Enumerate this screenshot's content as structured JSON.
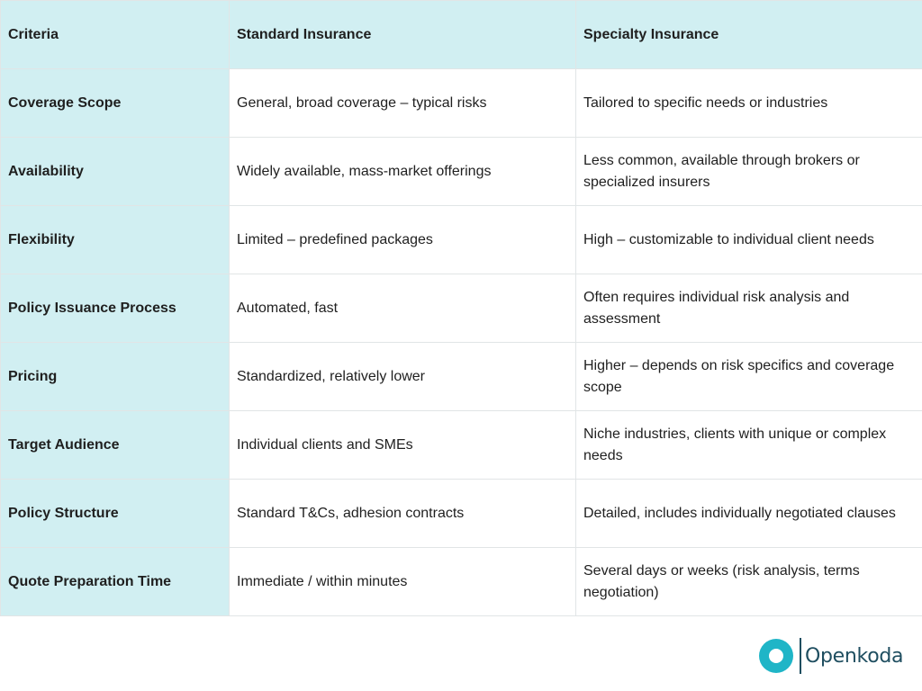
{
  "table": {
    "headers": [
      "Criteria",
      "Standard Insurance",
      "Specialty Insurance"
    ],
    "rows": [
      {
        "criteria": "Coverage Scope",
        "standard": "General, broad coverage – typical risks",
        "specialty": "Tailored to specific needs or industries"
      },
      {
        "criteria": "Availability",
        "standard": "Widely available, mass-market offerings",
        "specialty": "Less common, available through brokers or specialized insurers"
      },
      {
        "criteria": "Flexibility",
        "standard": "Limited – predefined packages",
        "specialty": "High – customizable to individual client needs"
      },
      {
        "criteria": "Policy Issuance Process",
        "standard": "Automated, fast",
        "specialty": "Often requires individual risk analysis and assessment"
      },
      {
        "criteria": "Pricing",
        "standard": "Standardized, relatively lower",
        "specialty": "Higher – depends on risk specifics and coverage scope"
      },
      {
        "criteria": "Target Audience",
        "standard": "Individual clients and SMEs",
        "specialty": "Niche industries, clients with unique or complex needs"
      },
      {
        "criteria": "Policy Structure",
        "standard": "Standard T&Cs, adhesion contracts",
        "specialty": "Detailed, includes individually negotiated clauses"
      },
      {
        "criteria": "Quote Preparation Time",
        "standard": "Immediate / within minutes",
        "specialty": "Several days or weeks (risk analysis, terms negotiation)"
      }
    ]
  },
  "logo": {
    "text": "Openkoda",
    "icon": "openkoda-logo-icon"
  },
  "colors": {
    "header_bg": "#d1eff2",
    "criteria_bg": "#d1eff2",
    "border": "#e1e5e6",
    "logo_accent": "#1fb5c7",
    "logo_text": "#1f4e60"
  }
}
